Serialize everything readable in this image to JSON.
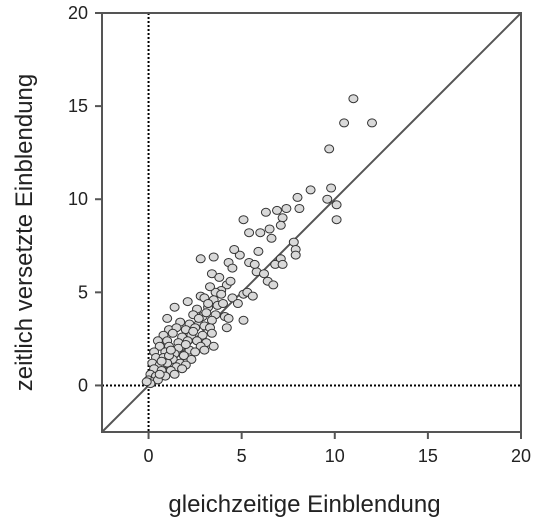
{
  "chart_data": {
    "type": "scatter",
    "title": "",
    "xlabel": "gleichzeitige Einblendung",
    "ylabel": "zeitlich versetzte Einblendung",
    "xlim": [
      -2.5,
      20
    ],
    "ylim": [
      -2.5,
      20
    ],
    "xticks": [
      0,
      5,
      10,
      15,
      20
    ],
    "yticks": [
      0,
      5,
      10,
      15,
      20
    ],
    "xtick_labels": [
      "0",
      "5",
      "10",
      "15",
      "20"
    ],
    "ytick_labels": [
      "0",
      "5",
      "10",
      "15",
      "20"
    ],
    "grid": false,
    "legend": "none",
    "reference_lines": [
      {
        "kind": "identity",
        "from": [
          -2.5,
          -2.5
        ],
        "to": [
          20,
          20
        ],
        "style": "solid",
        "color": "#555555"
      },
      {
        "kind": "vertical",
        "x": 0,
        "style": "dotted",
        "color": "#000000"
      },
      {
        "kind": "horizontal",
        "y": 0,
        "style": "dotted",
        "color": "#000000"
      }
    ],
    "marker": {
      "fill": "#d9d9d9",
      "stroke": "#333333"
    },
    "points": [
      [
        11.0,
        15.4
      ],
      [
        12.0,
        14.1
      ],
      [
        10.5,
        14.1
      ],
      [
        9.7,
        12.7
      ],
      [
        9.8,
        10.6
      ],
      [
        9.6,
        10.0
      ],
      [
        10.1,
        9.7
      ],
      [
        10.1,
        8.9
      ],
      [
        8.7,
        10.5
      ],
      [
        8.0,
        10.1
      ],
      [
        8.1,
        9.5
      ],
      [
        7.4,
        9.5
      ],
      [
        6.9,
        9.4
      ],
      [
        6.3,
        9.3
      ],
      [
        7.2,
        9.0
      ],
      [
        5.1,
        8.9
      ],
      [
        5.4,
        8.2
      ],
      [
        6.0,
        8.2
      ],
      [
        6.5,
        8.4
      ],
      [
        7.1,
        8.6
      ],
      [
        6.6,
        7.9
      ],
      [
        7.8,
        7.7
      ],
      [
        7.9,
        7.3
      ],
      [
        7.9,
        7.0
      ],
      [
        4.9,
        7.0
      ],
      [
        4.6,
        7.3
      ],
      [
        5.9,
        7.2
      ],
      [
        4.3,
        6.6
      ],
      [
        4.5,
        6.3
      ],
      [
        5.4,
        6.6
      ],
      [
        2.8,
        6.8
      ],
      [
        3.5,
        6.9
      ],
      [
        7.1,
        6.8
      ],
      [
        6.8,
        6.5
      ],
      [
        7.2,
        6.5
      ],
      [
        3.4,
        6.0
      ],
      [
        3.8,
        5.8
      ],
      [
        5.8,
        6.1
      ],
      [
        6.4,
        5.6
      ],
      [
        6.7,
        5.4
      ],
      [
        4.2,
        5.4
      ],
      [
        3.9,
        5.1
      ],
      [
        3.6,
        5.0
      ],
      [
        3.3,
        5.3
      ],
      [
        2.8,
        4.8
      ],
      [
        3.0,
        4.7
      ],
      [
        3.5,
        4.6
      ],
      [
        4.5,
        4.7
      ],
      [
        5.1,
        4.9
      ],
      [
        5.3,
        5.0
      ],
      [
        5.6,
        4.8
      ],
      [
        4.8,
        4.4
      ],
      [
        2.1,
        4.5
      ],
      [
        1.4,
        4.2
      ],
      [
        2.6,
        4.1
      ],
      [
        3.2,
        4.2
      ],
      [
        3.7,
        4.3
      ],
      [
        4.0,
        4.4
      ],
      [
        2.4,
        3.8
      ],
      [
        2.9,
        3.7
      ],
      [
        3.1,
        3.9
      ],
      [
        3.6,
        3.8
      ],
      [
        4.1,
        3.7
      ],
      [
        1.0,
        3.6
      ],
      [
        1.7,
        3.4
      ],
      [
        2.2,
        3.3
      ],
      [
        2.7,
        3.3
      ],
      [
        3.4,
        3.5
      ],
      [
        4.3,
        3.6
      ],
      [
        5.1,
        3.5
      ],
      [
        1.1,
        3.0
      ],
      [
        1.5,
        3.1
      ],
      [
        2.0,
        3.0
      ],
      [
        2.5,
        3.1
      ],
      [
        3.0,
        3.2
      ],
      [
        3.3,
        3.1
      ],
      [
        4.2,
        3.1
      ],
      [
        0.8,
        2.7
      ],
      [
        1.3,
        2.8
      ],
      [
        1.8,
        2.6
      ],
      [
        2.3,
        2.7
      ],
      [
        2.9,
        2.7
      ],
      [
        3.4,
        2.8
      ],
      [
        0.5,
        2.4
      ],
      [
        1.0,
        2.4
      ],
      [
        1.6,
        2.3
      ],
      [
        2.1,
        2.4
      ],
      [
        2.6,
        2.4
      ],
      [
        3.1,
        2.3
      ],
      [
        3.5,
        2.1
      ],
      [
        0.6,
        2.1
      ],
      [
        1.1,
        2.1
      ],
      [
        1.6,
        2.0
      ],
      [
        2.2,
        1.9
      ],
      [
        2.8,
        2.1
      ],
      [
        0.3,
        1.8
      ],
      [
        0.9,
        1.8
      ],
      [
        1.4,
        1.7
      ],
      [
        1.9,
        1.6
      ],
      [
        2.5,
        1.8
      ],
      [
        3.0,
        1.9
      ],
      [
        0.4,
        1.5
      ],
      [
        0.8,
        1.5
      ],
      [
        1.3,
        1.4
      ],
      [
        1.7,
        1.2
      ],
      [
        2.3,
        1.4
      ],
      [
        0.2,
        1.2
      ],
      [
        0.6,
        1.1
      ],
      [
        1.0,
        1.2
      ],
      [
        1.5,
        1.0
      ],
      [
        2.0,
        1.1
      ],
      [
        0.3,
        0.9
      ],
      [
        0.7,
        0.8
      ],
      [
        1.2,
        0.8
      ],
      [
        1.8,
        0.9
      ],
      [
        0.1,
        0.6
      ],
      [
        0.4,
        0.5
      ],
      [
        0.9,
        0.5
      ],
      [
        1.4,
        0.6
      ],
      [
        0.0,
        0.3
      ],
      [
        0.2,
        0.2
      ],
      [
        0.5,
        0.3
      ],
      [
        0.1,
        0.1
      ],
      [
        -0.1,
        0.2
      ],
      [
        0.6,
        0.6
      ],
      [
        1.1,
        1.6
      ],
      [
        2.4,
        2.9
      ],
      [
        3.9,
        4.9
      ],
      [
        4.4,
        5.6
      ],
      [
        5.7,
        6.5
      ],
      [
        6.2,
        6.0
      ],
      [
        2.0,
        2.2
      ],
      [
        1.2,
        1.9
      ],
      [
        0.7,
        1.3
      ],
      [
        2.7,
        3.6
      ],
      [
        3.2,
        4.4
      ]
    ]
  }
}
